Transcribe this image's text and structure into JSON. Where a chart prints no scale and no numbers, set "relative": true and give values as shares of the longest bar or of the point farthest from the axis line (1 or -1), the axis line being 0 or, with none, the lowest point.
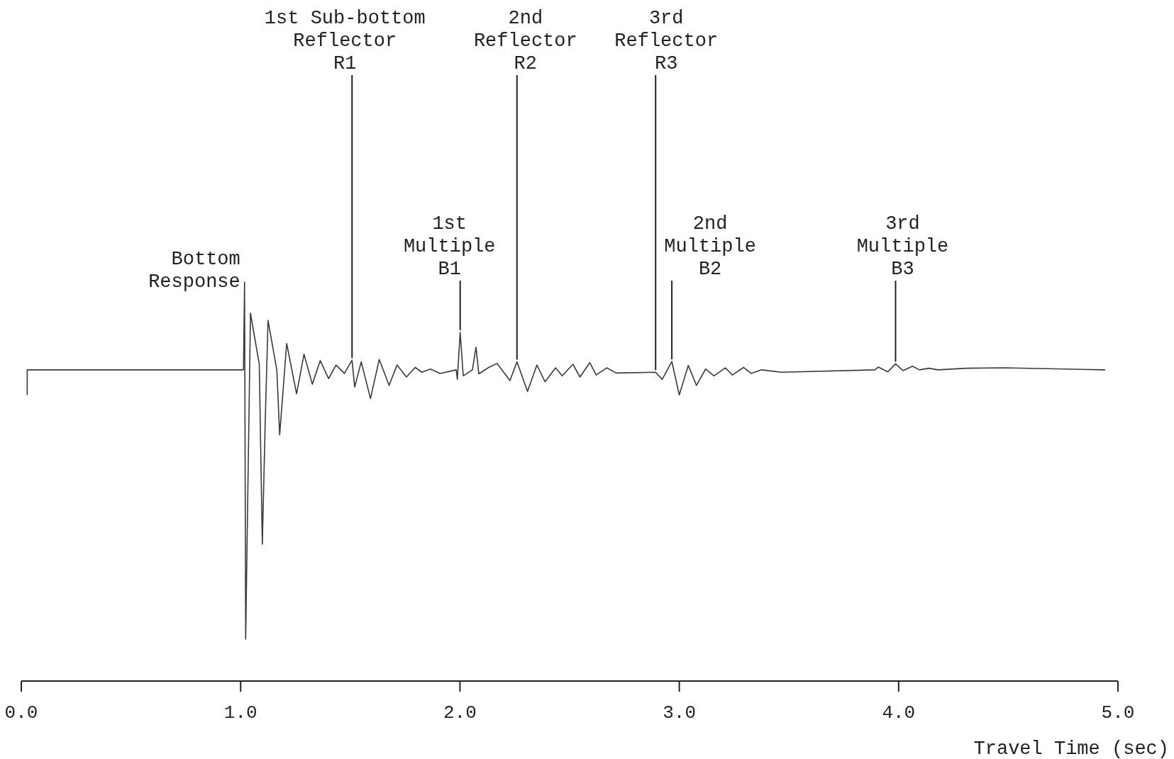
{
  "chart_data": {
    "type": "line",
    "relative": true,
    "color": "#3a3a3a",
    "tick_labels": "x",
    "xlabel": "Travel Time (sec)",
    "xlim": [
      0,
      5
    ],
    "xticks": [
      {
        "value": 0,
        "label": "0.0"
      },
      {
        "value": 1,
        "label": "1.0"
      },
      {
        "value": 2,
        "label": "2.0"
      },
      {
        "value": 3,
        "label": "3.0"
      },
      {
        "value": 4,
        "label": "4.0"
      },
      {
        "value": 5,
        "label": "5.0"
      }
    ],
    "x": [
      0.027,
      0.027,
      0.956,
      1.013,
      1.018,
      1.023,
      1.045,
      1.085,
      1.099,
      1.112,
      1.125,
      1.165,
      1.178,
      1.21,
      1.255,
      1.289,
      1.327,
      1.363,
      1.401,
      1.435,
      1.473,
      1.508,
      1.52,
      1.55,
      1.592,
      1.632,
      1.677,
      1.713,
      1.756,
      1.796,
      1.826,
      1.866,
      1.909,
      1.983,
      1.988,
      2.001,
      2.015,
      2.057,
      2.073,
      2.086,
      2.131,
      2.169,
      2.228,
      2.26,
      2.308,
      2.351,
      2.388,
      2.436,
      2.466,
      2.515,
      2.547,
      2.592,
      2.621,
      2.669,
      2.712,
      2.892,
      2.922,
      2.966,
      3.0,
      3.041,
      3.078,
      3.12,
      3.158,
      3.21,
      3.242,
      3.293,
      3.327,
      3.375,
      3.465,
      3.892,
      3.908,
      3.951,
      3.986,
      4.02,
      4.063,
      4.095,
      4.138,
      4.18,
      4.31,
      4.48,
      4.94
    ],
    "values": [
      0.718,
      0.78,
      0.78,
      0.78,
      1,
      0.105,
      0.922,
      0.794,
      0.343,
      0.645,
      0.904,
      0.78,
      0.617,
      0.846,
      0.72,
      0.819,
      0.744,
      0.803,
      0.758,
      0.792,
      0.771,
      0.804,
      0.737,
      0.8,
      0.708,
      0.806,
      0.741,
      0.792,
      0.762,
      0.786,
      0.774,
      0.782,
      0.771,
      0.78,
      0.756,
      0.874,
      0.765,
      0.78,
      0.837,
      0.77,
      0.786,
      0.796,
      0.753,
      0.8,
      0.726,
      0.792,
      0.75,
      0.785,
      0.765,
      0.794,
      0.762,
      0.798,
      0.767,
      0.785,
      0.772,
      0.774,
      0.756,
      0.801,
      0.717,
      0.791,
      0.741,
      0.782,
      0.765,
      0.785,
      0.767,
      0.786,
      0.771,
      0.78,
      0.774,
      0.78,
      0.787,
      0.775,
      0.795,
      0.778,
      0.789,
      0.78,
      0.784,
      0.78,
      0.784,
      0.785,
      0.78
    ],
    "annotations": [
      {
        "text": "Bottom\nResponse",
        "x": 1.018,
        "y": 1
      },
      {
        "text": "1st Sub-bottom\nReflector\nR1",
        "x": 1.508,
        "y": 0.804
      },
      {
        "text": "2nd\nReflector\nR2",
        "x": 2.26,
        "y": 0.8
      },
      {
        "text": "3rd\nReflector\nR3",
        "x": 2.892,
        "y": 0.774
      },
      {
        "text": "1st\nMultiple\nB1",
        "x": 2.001,
        "y": 0.874
      },
      {
        "text": "2nd\nMultiple\nB2",
        "x": 2.966,
        "y": 0.801
      },
      {
        "text": "3rd\nMultiple\nB3",
        "x": 3.986,
        "y": 0.795
      }
    ]
  }
}
